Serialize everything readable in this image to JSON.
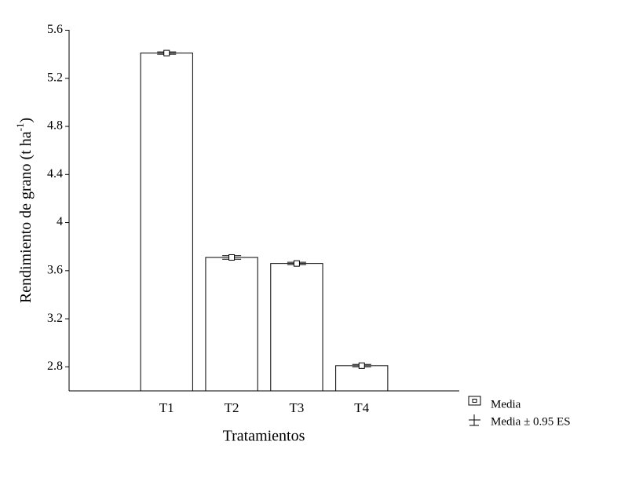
{
  "chart_data": {
    "type": "bar",
    "categories": [
      null,
      "T1",
      "T2",
      "T3",
      "T4",
      null
    ],
    "values": [
      null,
      5.41,
      3.71,
      3.66,
      2.81,
      null
    ],
    "errors": [
      null,
      0.01,
      0.015,
      0.01,
      0.01,
      null
    ],
    "color": "#ffffff",
    "ylim": [
      2.6,
      5.6
    ],
    "yticks": [
      2.8,
      3.2,
      3.6,
      4.0,
      4.4,
      4.8,
      5.2,
      5.6
    ],
    "xlabel": "Tratamientos",
    "ylabel": {
      "text": "Rendimiento de grano  (t ha",
      "superscript": "-1",
      "suffix": ")"
    },
    "legend": [
      "Media",
      "Media ± 0.95 ES"
    ],
    "grid": false
  }
}
